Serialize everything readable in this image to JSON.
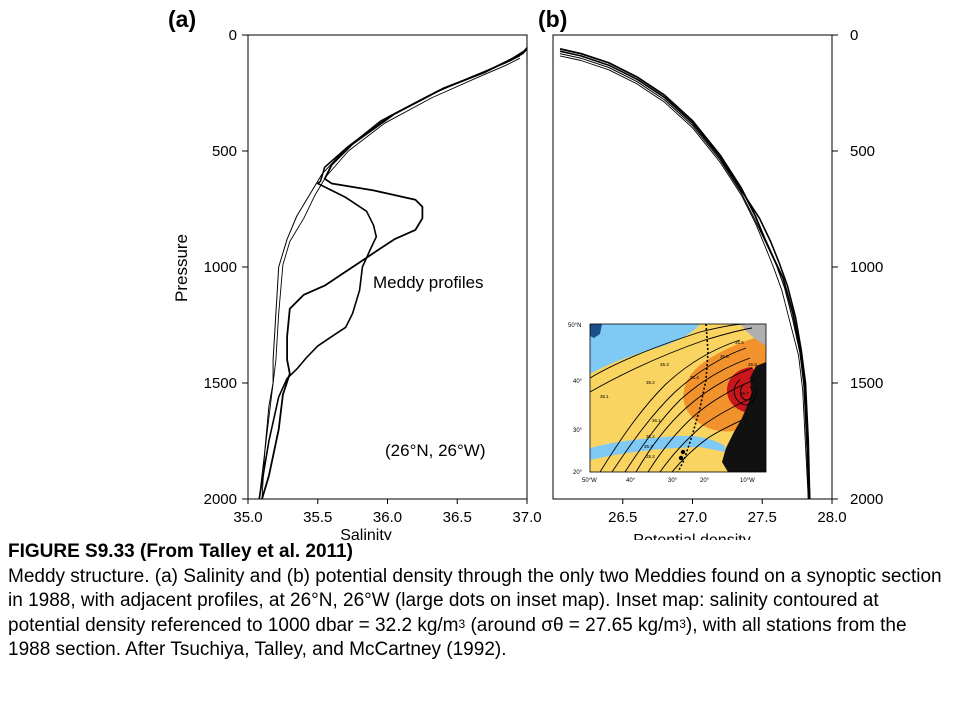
{
  "chart_data": [
    {
      "panel": "(a)",
      "type": "line",
      "xlabel": "Salinity",
      "ylabel": "Pressure",
      "xlim": [
        35.0,
        37.0
      ],
      "ylim": [
        0,
        2000
      ],
      "y_inverted": true,
      "xticks": [
        "35.0",
        "35.5",
        "36.0",
        "36.5",
        "37.0"
      ],
      "yticks": [
        "0",
        "500",
        "1000",
        "1500",
        "2000"
      ],
      "annotations": [
        "Meddy profiles",
        "(26°N, 26°W)"
      ],
      "series": [
        {
          "x": [
            37.0,
            36.98,
            36.9,
            36.7,
            36.4,
            36.05,
            35.75,
            35.6,
            35.55,
            35.6,
            35.9,
            36.2,
            36.25,
            36.25,
            36.2,
            36.05,
            35.95,
            35.85,
            35.7,
            35.55,
            35.4,
            35.3,
            35.28,
            35.28,
            35.3,
            35.25,
            35.22,
            35.15,
            35.1
          ],
          "y": [
            55,
            70,
            100,
            160,
            230,
            340,
            470,
            560,
            620,
            640,
            670,
            710,
            740,
            790,
            840,
            880,
            920,
            960,
            1020,
            1080,
            1120,
            1180,
            1300,
            1400,
            1460,
            1550,
            1700,
            1900,
            2000
          ]
        },
        {
          "x": [
            37.0,
            36.97,
            36.88,
            36.65,
            36.35,
            36.0,
            35.72,
            35.55,
            35.52,
            35.5,
            35.7,
            35.85,
            35.9,
            35.92,
            35.88,
            35.82,
            35.8,
            35.75,
            35.7,
            35.6,
            35.5,
            35.42,
            35.35,
            35.28,
            35.22,
            35.15,
            35.08
          ],
          "y": [
            60,
            80,
            110,
            170,
            245,
            355,
            480,
            570,
            630,
            640,
            700,
            760,
            820,
            870,
            920,
            1000,
            1100,
            1200,
            1260,
            1300,
            1340,
            1390,
            1440,
            1480,
            1560,
            1750,
            2000
          ]
        },
        {
          "x": [
            36.95,
            36.85,
            36.6,
            36.3,
            35.95,
            35.7,
            35.53,
            35.45,
            35.35,
            35.28,
            35.22,
            35.2,
            35.18,
            35.18,
            35.15,
            35.12,
            35.08
          ],
          "y": [
            90,
            120,
            180,
            260,
            370,
            490,
            600,
            680,
            780,
            880,
            1000,
            1200,
            1400,
            1500,
            1600,
            1800,
            2000
          ]
        },
        {
          "x": [
            36.95,
            36.85,
            36.62,
            36.32,
            35.98,
            35.72,
            35.56,
            35.48,
            35.4,
            35.3,
            35.25,
            35.22,
            35.2,
            35.18,
            35.16,
            35.12,
            35.1
          ],
          "y": [
            100,
            130,
            190,
            270,
            380,
            500,
            610,
            690,
            790,
            890,
            990,
            1200,
            1400,
            1500,
            1600,
            1800,
            2000
          ]
        }
      ]
    },
    {
      "panel": "(b)",
      "type": "line",
      "xlabel": "Potential density",
      "xlim": [
        26.0,
        28.0
      ],
      "ylim": [
        0,
        2000
      ],
      "y_inverted": true,
      "xticks": [
        "26.5",
        "27.0",
        "27.5",
        "28.0"
      ],
      "yticks": [
        "0",
        "500",
        "1000",
        "1500",
        "2000"
      ],
      "series": [
        {
          "x": [
            26.05,
            26.2,
            26.4,
            26.6,
            26.8,
            27.0,
            27.2,
            27.35,
            27.45,
            27.52,
            27.58,
            27.65,
            27.72,
            27.77,
            27.8,
            27.82,
            27.84
          ],
          "y": [
            60,
            80,
            120,
            180,
            260,
            370,
            520,
            660,
            780,
            880,
            960,
            1050,
            1200,
            1350,
            1500,
            1750,
            2000
          ]
        },
        {
          "x": [
            26.05,
            26.2,
            26.4,
            26.6,
            26.8,
            27.0,
            27.2,
            27.35,
            27.48,
            27.56,
            27.62,
            27.68,
            27.74,
            27.78,
            27.81,
            27.83,
            27.84
          ],
          "y": [
            70,
            90,
            130,
            190,
            270,
            380,
            530,
            670,
            790,
            890,
            980,
            1080,
            1220,
            1360,
            1500,
            1750,
            2000
          ]
        },
        {
          "x": [
            26.05,
            26.2,
            26.4,
            26.6,
            26.8,
            27.0,
            27.2,
            27.35,
            27.45,
            27.53,
            27.6,
            27.66,
            27.72,
            27.77,
            27.8,
            27.82,
            27.83
          ],
          "y": [
            80,
            100,
            140,
            200,
            280,
            390,
            540,
            680,
            800,
            900,
            990,
            1090,
            1230,
            1370,
            1520,
            1760,
            2000
          ]
        },
        {
          "x": [
            26.05,
            26.2,
            26.4,
            26.6,
            26.8,
            27.0,
            27.2,
            27.35,
            27.45,
            27.52,
            27.58,
            27.64,
            27.7,
            27.76,
            27.79,
            27.81,
            27.83
          ],
          "y": [
            90,
            110,
            150,
            210,
            290,
            400,
            550,
            690,
            810,
            910,
            1000,
            1100,
            1240,
            1380,
            1530,
            1770,
            2000
          ]
        }
      ]
    }
  ],
  "inset": {
    "lat_labels": [
      "50°N",
      "40°",
      "30°",
      "20°"
    ],
    "lon_labels": [
      "50°W",
      "40°",
      "30°",
      "20°",
      "10°W"
    ],
    "contour_labels": [
      "35.1",
      "35.2",
      "35.3",
      "35.4",
      "35.5",
      "35.6",
      "35.7",
      "35.8",
      "36.1",
      "35.2",
      "35.3",
      "35.2"
    ],
    "colors": {
      "land": "#111111",
      "blue": "#7fc9f5",
      "yellow": "#fad460",
      "orange": "#f2922c",
      "red": "#c8161d",
      "gray": "#b0b0b0"
    }
  },
  "caption": {
    "title": "FIGURE S9.33 (From Talley et al. 2011)",
    "p1": "Meddy structure. (a) Salinity and (b) potential density through the only two Meddies found on a synoptic section in 1988, with adjacent profiles, at 26°N, 26°W (large dots on inset map). Inset map: salinity contoured at potential density referenced to 1000 dbar = 32.2 kg/m",
    "sup1": "3",
    "p2": " (around σθ = 27.65 kg/m",
    "sup2": "3",
    "p3": "), with all stations from the 1988 section. After Tsuchiya, Talley, and McCartney (1992)."
  }
}
